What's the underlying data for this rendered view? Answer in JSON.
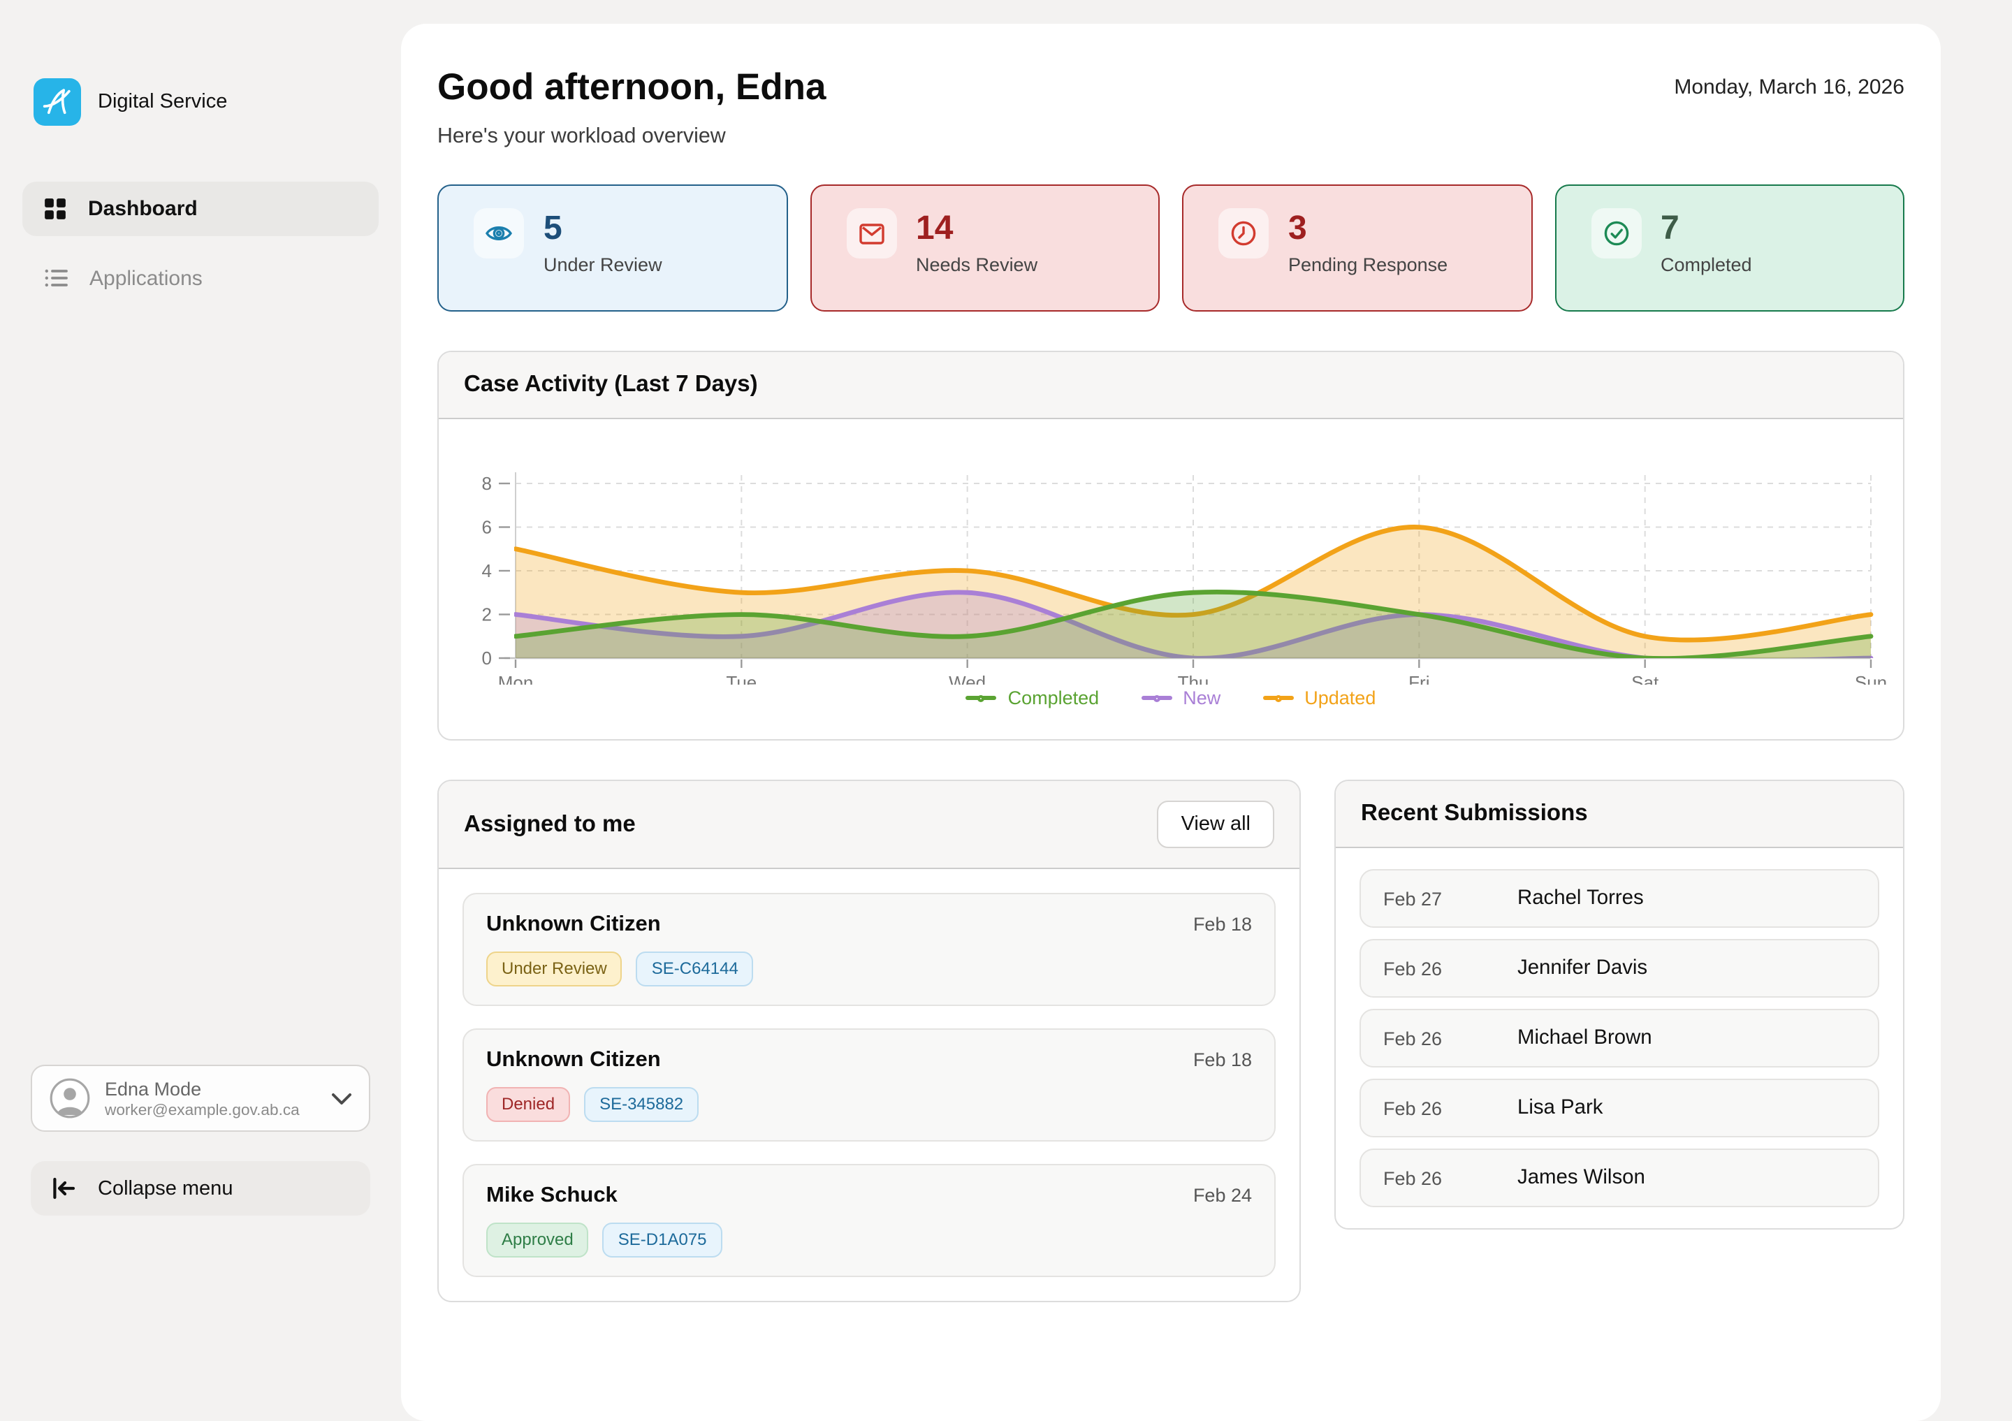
{
  "sidebar": {
    "brand": {
      "name": "Digital Service"
    },
    "items": [
      {
        "label": "Dashboard",
        "state": "active"
      },
      {
        "label": "Applications",
        "state": "inactive"
      }
    ],
    "user": {
      "name": "Edna Mode",
      "email": "worker@example.gov.ab.ca"
    },
    "collapse_label": "Collapse menu"
  },
  "header": {
    "greeting": "Good afternoon, Edna",
    "subtitle": "Here's your workload overview",
    "date": "Monday, March 16, 2026"
  },
  "stats": [
    {
      "value": "5",
      "label": "Under Review",
      "icon": "eye-icon",
      "bg": "#e9f3fb",
      "border": "#23608a",
      "number_color": "#1d4e79",
      "icon_color": "#1b7fae"
    },
    {
      "value": "14",
      "label": "Needs Review",
      "icon": "mail-icon",
      "bg": "#f9dede",
      "border": "#a72a2a",
      "number_color": "#9e1f1f",
      "icon_color": "#d23b2f"
    },
    {
      "value": "3",
      "label": "Pending Response",
      "icon": "clock-icon",
      "bg": "#f9dede",
      "border": "#a72a2a",
      "number_color": "#9e1f1f",
      "icon_color": "#d23b2f"
    },
    {
      "value": "7",
      "label": "Completed",
      "icon": "check-circle-icon",
      "bg": "#dbf2e6",
      "border": "#177a4c",
      "number_color": "#3e5c48",
      "icon_color": "#1d8a55"
    }
  ],
  "chart_data": {
    "type": "area",
    "title": "Case Activity (Last 7 Days)",
    "x": [
      "Mon",
      "Tue",
      "Wed",
      "Thu",
      "Fri",
      "Sat",
      "Sun"
    ],
    "series": [
      {
        "name": "Completed",
        "color": "#5aa332",
        "values": [
          1,
          2,
          1,
          3,
          2,
          0,
          1
        ]
      },
      {
        "name": "New",
        "color": "#a97fd6",
        "values": [
          2,
          1,
          3,
          0,
          2,
          0,
          0
        ]
      },
      {
        "name": "Updated",
        "color": "#f2a218",
        "values": [
          5,
          3,
          4,
          2,
          6,
          1,
          2
        ]
      }
    ],
    "ylim": [
      0,
      8
    ],
    "yticks": [
      0,
      2,
      4,
      6,
      8
    ],
    "grid": true,
    "legend_position": "bottom"
  },
  "assigned": {
    "title": "Assigned to me",
    "view_all_label": "View all",
    "items": [
      {
        "name": "Unknown Citizen",
        "date": "Feb 18",
        "status": {
          "label": "Under Review",
          "type": "warning"
        },
        "case_id": "SE-C64144"
      },
      {
        "name": "Unknown Citizen",
        "date": "Feb 18",
        "status": {
          "label": "Denied",
          "type": "danger"
        },
        "case_id": "SE-345882"
      },
      {
        "name": "Mike Schuck",
        "date": "Feb 24",
        "status": {
          "label": "Approved",
          "type": "success"
        },
        "case_id": "SE-D1A075"
      }
    ]
  },
  "recent": {
    "title": "Recent Submissions",
    "items": [
      {
        "date": "Feb 27",
        "name": "Rachel Torres"
      },
      {
        "date": "Feb 26",
        "name": "Jennifer Davis"
      },
      {
        "date": "Feb 26",
        "name": "Michael Brown"
      },
      {
        "date": "Feb 26",
        "name": "Lisa Park"
      },
      {
        "date": "Feb 26",
        "name": "James Wilson"
      }
    ]
  },
  "palette": {
    "brand": "#27b4e8",
    "page_bg": "#f3f2f1",
    "badges": {
      "warning": {
        "bg": "#fdf1cd",
        "border": "#eed48a",
        "text": "#7a6215"
      },
      "danger": {
        "bg": "#fadddd",
        "border": "#f1b3b3",
        "text": "#9e2626"
      },
      "success": {
        "bg": "#def1e3",
        "border": "#bfe3c8",
        "text": "#2e7d46"
      },
      "info": {
        "bg": "#e8f4fc",
        "border": "#bcdcf0",
        "text": "#1d6a9a"
      }
    }
  }
}
